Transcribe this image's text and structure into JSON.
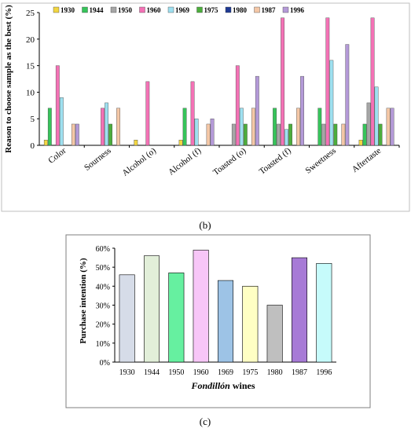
{
  "panel_b_label": "(b)",
  "panel_c_label": "(c)",
  "chart_data": [
    {
      "type": "bar",
      "panel": "(b)",
      "ylabel": "Reason to choose sample as the best (%)",
      "xlabel": "",
      "ylim": [
        0,
        25
      ],
      "yticks": [
        "0",
        "5",
        "10",
        "15",
        "20",
        "25"
      ],
      "grid": false,
      "legend_position": "top",
      "categories": [
        "Color",
        "Sourness",
        "Alcohol (o)",
        "Alcohol (f)",
        "Toasted (o)",
        "Toasted (f)",
        "Sweetness",
        "Aftertaste"
      ],
      "series": [
        {
          "name": "1930",
          "color": "#f2d641",
          "values": [
            1,
            0,
            1,
            1,
            0,
            0,
            0,
            1
          ]
        },
        {
          "name": "1944",
          "color": "#36c45a",
          "values": [
            7,
            0,
            0,
            7,
            0,
            7,
            7,
            4
          ]
        },
        {
          "name": "1950",
          "color": "#a6a6a6",
          "values": [
            0,
            0,
            0,
            0,
            4,
            4,
            4,
            8
          ]
        },
        {
          "name": "1960",
          "color": "#f472b6",
          "values": [
            15,
            7,
            12,
            12,
            15,
            24,
            24,
            24
          ]
        },
        {
          "name": "1969",
          "color": "#9ee0f0",
          "values": [
            9,
            8,
            0,
            5,
            7,
            3,
            16,
            11
          ]
        },
        {
          "name": "1975",
          "color": "#4cae3c",
          "values": [
            0,
            4,
            0,
            0,
            4,
            4,
            4,
            4
          ]
        },
        {
          "name": "1980",
          "color": "#1f3a93",
          "values": [
            0,
            0,
            0,
            0,
            0,
            0,
            0,
            0
          ]
        },
        {
          "name": "1987",
          "color": "#f4c7a6",
          "values": [
            4,
            7,
            0,
            4,
            7,
            7,
            4,
            7
          ]
        },
        {
          "name": "1996",
          "color": "#b49ad8",
          "values": [
            4,
            0,
            0,
            5,
            13,
            13,
            19,
            7
          ]
        }
      ]
    },
    {
      "type": "bar",
      "panel": "(c)",
      "ylabel": "Purchase intention (%)",
      "xlabel_italic": "Fondillón",
      "xlabel_rest": " wines",
      "ylim": [
        0,
        60
      ],
      "yticks": [
        "0%",
        "10%",
        "20%",
        "30%",
        "40%",
        "50%",
        "60%"
      ],
      "grid": false,
      "categories": [
        "1930",
        "1944",
        "1950",
        "1960",
        "1969",
        "1975",
        "1980",
        "1987",
        "1996"
      ],
      "values": [
        46,
        56,
        47,
        59,
        43,
        40,
        30,
        55,
        52
      ],
      "colors": [
        "#d6dce8",
        "#e2efd9",
        "#66f0a0",
        "#f7c6f7",
        "#9dc3e6",
        "#ffffc4",
        "#bfbfbf",
        "#a77ad6",
        "#c6fbfb"
      ]
    }
  ]
}
